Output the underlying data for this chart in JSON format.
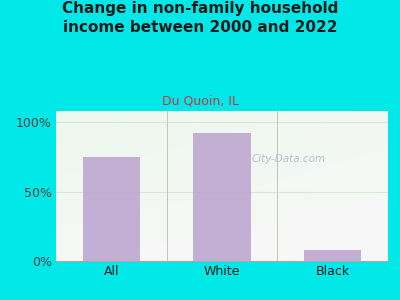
{
  "title": "Change in non-family household\nincome between 2000 and 2022",
  "subtitle": "Du Quoin, IL",
  "categories": [
    "All",
    "White",
    "Black"
  ],
  "values": [
    75,
    92,
    8
  ],
  "bar_color": "#b8a0cc",
  "bar_alpha": 0.82,
  "title_color": "#1a1a1a",
  "subtitle_color": "#cc3344",
  "bg_color": "#00e8e8",
  "plot_bg_top_left": "#e8f5e0",
  "plot_bg_bottom_right": "#f8fdf8",
  "yticks": [
    0,
    50,
    100
  ],
  "ytick_labels": [
    "0%",
    "50%",
    "100%"
  ],
  "ylim": [
    0,
    108
  ],
  "watermark": "City-Data.com",
  "watermark_color": "#b0b8c8",
  "grid_color": "#d8e8d0",
  "separator_color": "#c0c8b8"
}
